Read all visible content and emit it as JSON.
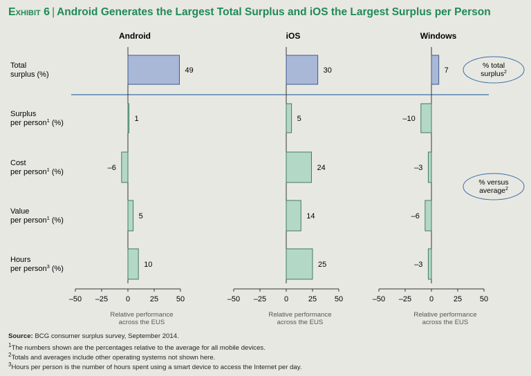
{
  "title": {
    "exhibit": "Exhibit 6",
    "separator": "|",
    "text": "Android Generates the Largest Total Surplus and iOS the Largest Surplus per Person"
  },
  "colors": {
    "top_bar_fill": "#aab8d8",
    "top_bar_stroke": "#3a5a8a",
    "bar_fill": "#b4d8c6",
    "bar_stroke": "#3f7a62",
    "divider": "#3a6ea5"
  },
  "chart_data": {
    "type": "bar",
    "orientation": "horizontal",
    "platforms": [
      "Android",
      "iOS",
      "Windows"
    ],
    "rows": [
      {
        "label": [
          "Total",
          "surplus (%)"
        ],
        "sup": [
          "",
          ""
        ]
      },
      {
        "label": [
          "Surplus",
          "per person (%)"
        ],
        "sup": [
          "",
          "1"
        ]
      },
      {
        "label": [
          "Cost",
          "per person (%)"
        ],
        "sup": [
          "",
          "1"
        ]
      },
      {
        "label": [
          "Value",
          "per person (%)"
        ],
        "sup": [
          "",
          "1"
        ]
      },
      {
        "label": [
          "Hours",
          "per person (%)"
        ],
        "sup": [
          "",
          "3"
        ]
      }
    ],
    "series": [
      {
        "name": "Android",
        "values": [
          49,
          1,
          -6,
          5,
          10
        ],
        "labels": [
          "49",
          "1",
          "–6",
          "5",
          "10"
        ]
      },
      {
        "name": "iOS",
        "values": [
          30,
          5,
          24,
          14,
          25
        ],
        "labels": [
          "30",
          "5",
          "24",
          "14",
          "25"
        ]
      },
      {
        "name": "Windows",
        "values": [
          7,
          -10,
          -3,
          -6,
          -3
        ],
        "labels": [
          "7",
          "–10",
          "–3",
          "–6",
          "–3"
        ]
      }
    ],
    "xlim": [
      -50,
      50
    ],
    "ticks": [
      -50,
      -25,
      0,
      25,
      50
    ],
    "tick_labels": [
      "–50",
      "–25",
      "0",
      "25",
      "50"
    ],
    "xlabel": [
      "Relative performance",
      "across the EUS"
    ],
    "annotations": [
      {
        "lines": [
          "% total",
          "surplus"
        ],
        "sup": "2"
      },
      {
        "lines": [
          "% versus",
          "average"
        ],
        "sup": "2"
      }
    ]
  },
  "notes": {
    "source_label": "Source:",
    "source_text": " BCG consumer surplus survey, September 2014.",
    "fn1_sup": "1",
    "fn1": "The numbers shown are the percentages relative to the average for all mobile devices.",
    "fn2_sup": "2",
    "fn2": "Totals and averages include other operating systems not shown here.",
    "fn3_sup": "3",
    "fn3": "Hours per person is the number of hours spent using a smart device to access the Internet per day."
  }
}
